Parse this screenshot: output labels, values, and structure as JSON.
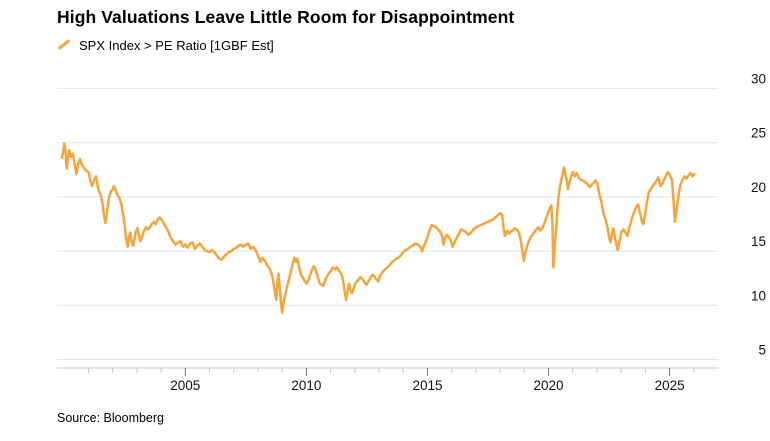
{
  "header": {
    "title": "High Valuations Leave Little Room for Disappointment",
    "legend_label": "SPX Index > PE Ratio [1GBF Est]"
  },
  "footer": {
    "source": "Source: Bloomberg"
  },
  "chart_data": {
    "type": "line",
    "title": "High Valuations Leave Little Room for Disappointment",
    "series": [
      {
        "name": "SPX Index > PE Ratio [1GBF Est]",
        "color": "#F7A43C"
      }
    ],
    "xlabel": "",
    "ylabel": "PE Ratio",
    "x_range": [
      1999.7,
      2027.0
    ],
    "y_range": [
      5,
      30
    ],
    "grid": "horizontal",
    "legend_position": "top-left",
    "y_gridlines": [
      5,
      10,
      15,
      20,
      25,
      30
    ],
    "x_ticks_minor": [
      2001,
      2002,
      2003,
      2004,
      2005,
      2006,
      2007,
      2008,
      2009,
      2010,
      2011,
      2012,
      2013,
      2014,
      2015,
      2016,
      2017,
      2018,
      2019,
      2020,
      2021,
      2022,
      2023,
      2024,
      2025,
      2026
    ],
    "x_ticks_labeled": [
      2005,
      2010,
      2015,
      2020,
      2025
    ],
    "points": [
      [
        1999.9,
        23.6
      ],
      [
        1999.95,
        24.1
      ],
      [
        2000.0,
        24.9
      ],
      [
        2000.05,
        24.2
      ],
      [
        2000.1,
        22.6
      ],
      [
        2000.15,
        23.5
      ],
      [
        2000.2,
        24.3
      ],
      [
        2000.28,
        23.7
      ],
      [
        2000.35,
        24.0
      ],
      [
        2000.42,
        23.2
      ],
      [
        2000.5,
        22.1
      ],
      [
        2000.58,
        23.1
      ],
      [
        2000.65,
        23.5
      ],
      [
        2000.72,
        23.0
      ],
      [
        2000.8,
        22.7
      ],
      [
        2000.9,
        22.4
      ],
      [
        2001.0,
        22.3
      ],
      [
        2001.08,
        21.5
      ],
      [
        2001.15,
        21.0
      ],
      [
        2001.25,
        21.6
      ],
      [
        2001.32,
        21.9
      ],
      [
        2001.4,
        20.7
      ],
      [
        2001.5,
        20.2
      ],
      [
        2001.58,
        19.4
      ],
      [
        2001.65,
        18.2
      ],
      [
        2001.7,
        17.6
      ],
      [
        2001.78,
        18.9
      ],
      [
        2001.85,
        20.0
      ],
      [
        2001.92,
        20.5
      ],
      [
        2002.0,
        20.7
      ],
      [
        2002.06,
        21.0
      ],
      [
        2002.12,
        20.6
      ],
      [
        2002.2,
        20.2
      ],
      [
        2002.28,
        19.9
      ],
      [
        2002.36,
        19.3
      ],
      [
        2002.44,
        18.3
      ],
      [
        2002.5,
        17.3
      ],
      [
        2002.56,
        16.1
      ],
      [
        2002.62,
        15.4
      ],
      [
        2002.68,
        16.4
      ],
      [
        2002.72,
        16.7
      ],
      [
        2002.78,
        15.9
      ],
      [
        2002.84,
        15.5
      ],
      [
        2002.9,
        16.1
      ],
      [
        2002.96,
        16.8
      ],
      [
        2003.02,
        17.1
      ],
      [
        2003.08,
        16.5
      ],
      [
        2003.15,
        15.9
      ],
      [
        2003.22,
        16.4
      ],
      [
        2003.3,
        16.9
      ],
      [
        2003.38,
        17.2
      ],
      [
        2003.46,
        17.0
      ],
      [
        2003.54,
        17.2
      ],
      [
        2003.62,
        17.5
      ],
      [
        2003.7,
        17.7
      ],
      [
        2003.78,
        17.5
      ],
      [
        2003.86,
        17.9
      ],
      [
        2003.94,
        18.1
      ],
      [
        2004.02,
        17.9
      ],
      [
        2004.1,
        17.6
      ],
      [
        2004.2,
        17.2
      ],
      [
        2004.3,
        16.8
      ],
      [
        2004.4,
        16.2
      ],
      [
        2004.5,
        15.9
      ],
      [
        2004.6,
        15.6
      ],
      [
        2004.7,
        15.8
      ],
      [
        2004.8,
        15.9
      ],
      [
        2004.9,
        15.4
      ],
      [
        2005.0,
        15.6
      ],
      [
        2005.1,
        15.3
      ],
      [
        2005.2,
        15.7
      ],
      [
        2005.3,
        15.8
      ],
      [
        2005.4,
        15.2
      ],
      [
        2005.5,
        15.5
      ],
      [
        2005.6,
        15.7
      ],
      [
        2005.7,
        15.4
      ],
      [
        2005.8,
        15.1
      ],
      [
        2005.9,
        15.0
      ],
      [
        2006.0,
        14.9
      ],
      [
        2006.1,
        15.1
      ],
      [
        2006.2,
        14.9
      ],
      [
        2006.3,
        14.6
      ],
      [
        2006.4,
        14.3
      ],
      [
        2006.5,
        14.2
      ],
      [
        2006.6,
        14.5
      ],
      [
        2006.7,
        14.7
      ],
      [
        2006.8,
        14.9
      ],
      [
        2006.9,
        15.0
      ],
      [
        2007.0,
        15.2
      ],
      [
        2007.1,
        15.3
      ],
      [
        2007.2,
        15.5
      ],
      [
        2007.3,
        15.6
      ],
      [
        2007.4,
        15.4
      ],
      [
        2007.5,
        15.6
      ],
      [
        2007.6,
        15.7
      ],
      [
        2007.7,
        15.2
      ],
      [
        2007.8,
        15.4
      ],
      [
        2007.9,
        15.1
      ],
      [
        2008.0,
        14.6
      ],
      [
        2008.1,
        14.0
      ],
      [
        2008.18,
        14.4
      ],
      [
        2008.28,
        14.1
      ],
      [
        2008.38,
        13.7
      ],
      [
        2008.48,
        13.4
      ],
      [
        2008.58,
        12.8
      ],
      [
        2008.66,
        11.8
      ],
      [
        2008.72,
        10.9
      ],
      [
        2008.76,
        10.5
      ],
      [
        2008.8,
        12.0
      ],
      [
        2008.85,
        12.9
      ],
      [
        2008.9,
        11.6
      ],
      [
        2008.95,
        10.2
      ],
      [
        2009.0,
        9.3
      ],
      [
        2009.06,
        10.3
      ],
      [
        2009.12,
        10.9
      ],
      [
        2009.2,
        11.7
      ],
      [
        2009.28,
        12.4
      ],
      [
        2009.36,
        13.1
      ],
      [
        2009.44,
        13.9
      ],
      [
        2009.5,
        14.4
      ],
      [
        2009.56,
        14.0
      ],
      [
        2009.62,
        14.3
      ],
      [
        2009.7,
        13.5
      ],
      [
        2009.78,
        12.8
      ],
      [
        2009.86,
        12.5
      ],
      [
        2009.94,
        12.2
      ],
      [
        2010.02,
        12.0
      ],
      [
        2010.1,
        12.4
      ],
      [
        2010.2,
        13.1
      ],
      [
        2010.3,
        13.6
      ],
      [
        2010.38,
        13.3
      ],
      [
        2010.46,
        12.7
      ],
      [
        2010.55,
        12.0
      ],
      [
        2010.62,
        11.9
      ],
      [
        2010.7,
        11.8
      ],
      [
        2010.78,
        12.3
      ],
      [
        2010.86,
        12.7
      ],
      [
        2010.94,
        13.0
      ],
      [
        2011.02,
        13.2
      ],
      [
        2011.1,
        13.5
      ],
      [
        2011.18,
        13.3
      ],
      [
        2011.26,
        13.5
      ],
      [
        2011.34,
        13.2
      ],
      [
        2011.42,
        13.0
      ],
      [
        2011.5,
        12.5
      ],
      [
        2011.58,
        11.3
      ],
      [
        2011.64,
        10.5
      ],
      [
        2011.7,
        11.3
      ],
      [
        2011.76,
        12.0
      ],
      [
        2011.82,
        11.4
      ],
      [
        2011.88,
        11.1
      ],
      [
        2011.94,
        11.5
      ],
      [
        2012.0,
        11.9
      ],
      [
        2012.08,
        12.2
      ],
      [
        2012.16,
        12.4
      ],
      [
        2012.24,
        12.6
      ],
      [
        2012.32,
        12.4
      ],
      [
        2012.4,
        12.1
      ],
      [
        2012.48,
        11.9
      ],
      [
        2012.56,
        12.2
      ],
      [
        2012.64,
        12.5
      ],
      [
        2012.72,
        12.8
      ],
      [
        2012.8,
        12.7
      ],
      [
        2012.88,
        12.4
      ],
      [
        2012.96,
        12.2
      ],
      [
        2013.04,
        12.7
      ],
      [
        2013.12,
        13.0
      ],
      [
        2013.2,
        13.2
      ],
      [
        2013.3,
        13.4
      ],
      [
        2013.4,
        13.6
      ],
      [
        2013.5,
        13.9
      ],
      [
        2013.6,
        14.1
      ],
      [
        2013.7,
        14.3
      ],
      [
        2013.8,
        14.4
      ],
      [
        2013.9,
        14.6
      ],
      [
        2014.0,
        14.9
      ],
      [
        2014.1,
        15.1
      ],
      [
        2014.2,
        15.2
      ],
      [
        2014.3,
        15.4
      ],
      [
        2014.4,
        15.5
      ],
      [
        2014.5,
        15.7
      ],
      [
        2014.6,
        15.6
      ],
      [
        2014.7,
        15.4
      ],
      [
        2014.78,
        15.0
      ],
      [
        2014.86,
        15.5
      ],
      [
        2014.94,
        15.9
      ],
      [
        2015.02,
        16.4
      ],
      [
        2015.1,
        17.0
      ],
      [
        2015.18,
        17.4
      ],
      [
        2015.28,
        17.3
      ],
      [
        2015.36,
        17.2
      ],
      [
        2015.44,
        17.0
      ],
      [
        2015.52,
        16.8
      ],
      [
        2015.6,
        16.4
      ],
      [
        2015.66,
        15.6
      ],
      [
        2015.72,
        16.2
      ],
      [
        2015.8,
        16.5
      ],
      [
        2015.88,
        16.3
      ],
      [
        2015.96,
        16.0
      ],
      [
        2016.04,
        15.4
      ],
      [
        2016.12,
        15.8
      ],
      [
        2016.2,
        16.2
      ],
      [
        2016.3,
        16.6
      ],
      [
        2016.4,
        17.0
      ],
      [
        2016.5,
        16.9
      ],
      [
        2016.6,
        16.7
      ],
      [
        2016.7,
        16.5
      ],
      [
        2016.8,
        16.7
      ],
      [
        2016.9,
        17.0
      ],
      [
        2017.0,
        17.2
      ],
      [
        2017.1,
        17.3
      ],
      [
        2017.2,
        17.4
      ],
      [
        2017.3,
        17.5
      ],
      [
        2017.4,
        17.6
      ],
      [
        2017.5,
        17.7
      ],
      [
        2017.6,
        17.8
      ],
      [
        2017.7,
        17.9
      ],
      [
        2017.8,
        18.1
      ],
      [
        2017.9,
        18.3
      ],
      [
        2018.0,
        18.5
      ],
      [
        2018.08,
        18.4
      ],
      [
        2018.14,
        17.2
      ],
      [
        2018.2,
        16.4
      ],
      [
        2018.28,
        16.9
      ],
      [
        2018.36,
        16.6
      ],
      [
        2018.44,
        16.8
      ],
      [
        2018.52,
        16.9
      ],
      [
        2018.6,
        17.1
      ],
      [
        2018.68,
        17.0
      ],
      [
        2018.76,
        16.8
      ],
      [
        2018.84,
        16.2
      ],
      [
        2018.92,
        15.0
      ],
      [
        2018.98,
        14.1
      ],
      [
        2019.04,
        14.8
      ],
      [
        2019.12,
        15.5
      ],
      [
        2019.2,
        16.0
      ],
      [
        2019.3,
        16.4
      ],
      [
        2019.4,
        16.7
      ],
      [
        2019.5,
        17.0
      ],
      [
        2019.58,
        17.2
      ],
      [
        2019.66,
        16.9
      ],
      [
        2019.74,
        17.1
      ],
      [
        2019.82,
        17.5
      ],
      [
        2019.9,
        18.0
      ],
      [
        2019.98,
        18.5
      ],
      [
        2020.06,
        19.0
      ],
      [
        2020.12,
        19.2
      ],
      [
        2020.16,
        17.5
      ],
      [
        2020.2,
        13.5
      ],
      [
        2020.26,
        15.5
      ],
      [
        2020.32,
        17.3
      ],
      [
        2020.4,
        19.7
      ],
      [
        2020.46,
        20.8
      ],
      [
        2020.52,
        21.5
      ],
      [
        2020.58,
        22.1
      ],
      [
        2020.64,
        22.7
      ],
      [
        2020.7,
        22.0
      ],
      [
        2020.76,
        21.5
      ],
      [
        2020.8,
        20.7
      ],
      [
        2020.86,
        21.3
      ],
      [
        2020.92,
        21.8
      ],
      [
        2021.0,
        22.3
      ],
      [
        2021.08,
        21.9
      ],
      [
        2021.16,
        22.2
      ],
      [
        2021.24,
        21.8
      ],
      [
        2021.32,
        21.6
      ],
      [
        2021.4,
        21.5
      ],
      [
        2021.5,
        21.4
      ],
      [
        2021.6,
        21.2
      ],
      [
        2021.7,
        20.9
      ],
      [
        2021.78,
        21.1
      ],
      [
        2021.86,
        21.3
      ],
      [
        2021.94,
        21.5
      ],
      [
        2022.02,
        21.2
      ],
      [
        2022.1,
        20.2
      ],
      [
        2022.18,
        19.6
      ],
      [
        2022.26,
        18.6
      ],
      [
        2022.34,
        18.0
      ],
      [
        2022.42,
        17.4
      ],
      [
        2022.5,
        16.3
      ],
      [
        2022.56,
        15.8
      ],
      [
        2022.62,
        16.6
      ],
      [
        2022.68,
        17.1
      ],
      [
        2022.74,
        16.3
      ],
      [
        2022.8,
        15.6
      ],
      [
        2022.86,
        15.1
      ],
      [
        2022.94,
        16.0
      ],
      [
        2023.02,
        16.8
      ],
      [
        2023.1,
        17.0
      ],
      [
        2023.18,
        16.7
      ],
      [
        2023.26,
        16.4
      ],
      [
        2023.34,
        17.2
      ],
      [
        2023.42,
        17.8
      ],
      [
        2023.5,
        18.4
      ],
      [
        2023.6,
        19.0
      ],
      [
        2023.7,
        19.3
      ],
      [
        2023.78,
        18.5
      ],
      [
        2023.86,
        17.7
      ],
      [
        2023.92,
        17.5
      ],
      [
        2023.98,
        18.3
      ],
      [
        2024.06,
        19.4
      ],
      [
        2024.14,
        20.4
      ],
      [
        2024.22,
        20.7
      ],
      [
        2024.3,
        21.0
      ],
      [
        2024.38,
        21.2
      ],
      [
        2024.46,
        21.5
      ],
      [
        2024.54,
        21.8
      ],
      [
        2024.62,
        21.0
      ],
      [
        2024.7,
        21.2
      ],
      [
        2024.78,
        21.6
      ],
      [
        2024.86,
        22.0
      ],
      [
        2024.94,
        22.3
      ],
      [
        2025.02,
        21.9
      ],
      [
        2025.1,
        21.6
      ],
      [
        2025.16,
        19.8
      ],
      [
        2025.22,
        17.7
      ],
      [
        2025.3,
        19.0
      ],
      [
        2025.38,
        20.3
      ],
      [
        2025.46,
        21.2
      ],
      [
        2025.54,
        21.6
      ],
      [
        2025.62,
        21.9
      ],
      [
        2025.7,
        21.7
      ],
      [
        2025.78,
        22.0
      ],
      [
        2025.86,
        22.2
      ],
      [
        2025.94,
        21.9
      ],
      [
        2026.02,
        22.1
      ]
    ],
    "colors": {
      "line": "#F7A43C",
      "gridline": "#e4e4e4",
      "axis": "#c9c9c9",
      "major_tick": "#777777"
    }
  }
}
